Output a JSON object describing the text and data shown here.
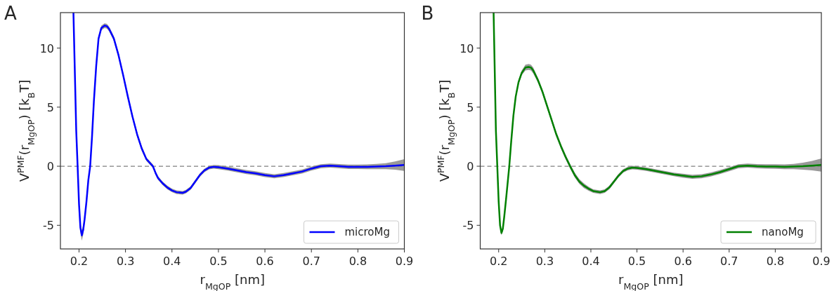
{
  "chart_data": [
    {
      "type": "line",
      "title": "A",
      "xlabel": "r$_{MgOP}$ [nm]",
      "ylabel": "V$^{PMF}$(r$_{MgOP}$) [k$_{B}$T]",
      "xlim": [
        0.16,
        0.9
      ],
      "ylim": [
        -7,
        13
      ],
      "xticks": [
        0.2,
        0.3,
        0.4,
        0.5,
        0.6,
        0.7,
        0.8,
        0.9
      ],
      "yticks": [
        -5,
        0,
        5,
        10
      ],
      "legend": "bottom right",
      "ref_lines": [
        {
          "axis": "y",
          "value": 0,
          "color": "#808080",
          "line_style": "dashed"
        }
      ],
      "series": [
        {
          "name": "microMg",
          "color": "#0000ff",
          "x": [
            0.188,
            0.191,
            0.194,
            0.197,
            0.2,
            0.203,
            0.206,
            0.209,
            0.212,
            0.216,
            0.22,
            0.224,
            0.228,
            0.232,
            0.237,
            0.242,
            0.248,
            0.255,
            0.26,
            0.265,
            0.275,
            0.285,
            0.295,
            0.305,
            0.315,
            0.325,
            0.335,
            0.345,
            0.359,
            0.365,
            0.37,
            0.38,
            0.39,
            0.4,
            0.41,
            0.423,
            0.43,
            0.44,
            0.45,
            0.46,
            0.47,
            0.48,
            0.49,
            0.5,
            0.52,
            0.54,
            0.56,
            0.58,
            0.6,
            0.62,
            0.64,
            0.66,
            0.68,
            0.7,
            0.72,
            0.74,
            0.76,
            0.78,
            0.8,
            0.82,
            0.84,
            0.86,
            0.88,
            0.9
          ],
          "values": [
            13,
            8,
            3,
            0,
            -3.2,
            -5.2,
            -5.85,
            -5.4,
            -4.5,
            -3,
            -1.2,
            0,
            2.5,
            5.5,
            8.5,
            10.8,
            11.7,
            11.9,
            11.85,
            11.6,
            10.8,
            9.4,
            7.7,
            5.9,
            4.2,
            2.7,
            1.5,
            0.6,
            0,
            -0.6,
            -1,
            -1.45,
            -1.8,
            -2.05,
            -2.2,
            -2.25,
            -2.15,
            -1.85,
            -1.3,
            -0.75,
            -0.35,
            -0.12,
            -0.05,
            -0.08,
            -0.2,
            -0.35,
            -0.5,
            -0.6,
            -0.75,
            -0.85,
            -0.75,
            -0.6,
            -0.45,
            -0.2,
            0,
            0.05,
            0,
            -0.05,
            -0.05,
            -0.05,
            -0.03,
            0,
            0.05,
            0.1
          ],
          "lower": [
            13,
            8,
            3,
            -0.1,
            -3.4,
            -5.6,
            -6.3,
            -5.8,
            -4.8,
            -3.2,
            -1.4,
            -0.2,
            2.3,
            5.3,
            8.3,
            10.6,
            11.5,
            11.7,
            11.65,
            11.4,
            10.6,
            9.2,
            7.5,
            5.7,
            4,
            2.5,
            1.3,
            0.45,
            -0.15,
            -0.75,
            -1.15,
            -1.6,
            -1.95,
            -2.2,
            -2.35,
            -2.4,
            -2.3,
            -2,
            -1.45,
            -0.9,
            -0.5,
            -0.27,
            -0.2,
            -0.25,
            -0.37,
            -0.52,
            -0.67,
            -0.77,
            -0.92,
            -1.02,
            -0.92,
            -0.77,
            -0.62,
            -0.37,
            -0.17,
            -0.12,
            -0.18,
            -0.23,
            -0.23,
            -0.25,
            -0.25,
            -0.25,
            -0.3,
            -0.4
          ],
          "upper": [
            13,
            8,
            3,
            0.1,
            -3,
            -4.8,
            -5.4,
            -5,
            -4.2,
            -2.8,
            -1,
            0.2,
            2.7,
            5.7,
            8.7,
            11,
            11.9,
            12.1,
            12.05,
            11.8,
            11,
            9.6,
            7.9,
            6.1,
            4.4,
            2.9,
            1.7,
            0.75,
            0.15,
            -0.45,
            -0.85,
            -1.3,
            -1.65,
            -1.9,
            -2.05,
            -2.1,
            -2,
            -1.7,
            -1.15,
            -0.6,
            -0.2,
            0.03,
            0.1,
            0.09,
            -0.03,
            -0.18,
            -0.33,
            -0.43,
            -0.58,
            -0.68,
            -0.58,
            -0.43,
            -0.28,
            -0.03,
            0.17,
            0.22,
            0.18,
            0.13,
            0.13,
            0.15,
            0.19,
            0.25,
            0.4,
            0.6
          ]
        }
      ]
    },
    {
      "type": "line",
      "title": "B",
      "xlabel": "r$_{MgOP}$ [nm]",
      "ylabel": "V$^{PMF}$(r$_{MgOP}$) [k$_{B}$T]",
      "xlim": [
        0.16,
        0.9
      ],
      "ylim": [
        -7,
        13
      ],
      "xticks": [
        0.2,
        0.3,
        0.4,
        0.5,
        0.6,
        0.7,
        0.8,
        0.9
      ],
      "yticks": [
        -5,
        0,
        5,
        10
      ],
      "legend": "bottom right",
      "ref_lines": [
        {
          "axis": "y",
          "value": 0,
          "color": "#808080",
          "line_style": "dashed"
        }
      ],
      "series": [
        {
          "name": "nanoMg",
          "color": "#008000",
          "x": [
            0.189,
            0.191,
            0.194,
            0.197,
            0.2,
            0.203,
            0.206,
            0.209,
            0.212,
            0.216,
            0.22,
            0.223,
            0.227,
            0.232,
            0.237,
            0.243,
            0.25,
            0.258,
            0.265,
            0.27,
            0.275,
            0.285,
            0.295,
            0.305,
            0.315,
            0.325,
            0.335,
            0.345,
            0.355,
            0.365,
            0.375,
            0.385,
            0.395,
            0.405,
            0.42,
            0.43,
            0.44,
            0.45,
            0.46,
            0.47,
            0.48,
            0.49,
            0.5,
            0.52,
            0.54,
            0.56,
            0.58,
            0.6,
            0.62,
            0.64,
            0.66,
            0.68,
            0.7,
            0.72,
            0.74,
            0.76,
            0.78,
            0.8,
            0.82,
            0.84,
            0.86,
            0.88,
            0.9
          ],
          "values": [
            13,
            9,
            3,
            0,
            -3,
            -5,
            -5.65,
            -5.3,
            -4.3,
            -2.8,
            -1.2,
            0,
            2,
            4.3,
            5.9,
            7.1,
            7.9,
            8.35,
            8.4,
            8.35,
            8.1,
            7.3,
            6.3,
            5.1,
            3.9,
            2.7,
            1.7,
            0.8,
            0,
            -0.75,
            -1.3,
            -1.65,
            -1.9,
            -2.1,
            -2.2,
            -2.1,
            -1.8,
            -1.3,
            -0.8,
            -0.4,
            -0.2,
            -0.12,
            -0.15,
            -0.25,
            -0.4,
            -0.55,
            -0.7,
            -0.8,
            -0.9,
            -0.85,
            -0.7,
            -0.5,
            -0.25,
            0,
            0.05,
            0,
            -0.02,
            -0.03,
            -0.05,
            -0.03,
            0,
            0.05,
            0.1
          ],
          "lower": [
            13,
            9,
            3,
            -0.1,
            -3.2,
            -5.2,
            -5.85,
            -5.5,
            -4.5,
            -3,
            -1.4,
            -0.2,
            1.8,
            4.1,
            5.7,
            6.9,
            7.7,
            8.1,
            8.15,
            8.1,
            7.85,
            7.1,
            6.1,
            4.9,
            3.7,
            2.5,
            1.5,
            0.6,
            -0.2,
            -0.95,
            -1.5,
            -1.85,
            -2.07,
            -2.25,
            -2.35,
            -2.25,
            -1.95,
            -1.45,
            -0.95,
            -0.55,
            -0.35,
            -0.27,
            -0.3,
            -0.4,
            -0.55,
            -0.7,
            -0.85,
            -0.97,
            -1.07,
            -1.02,
            -0.87,
            -0.67,
            -0.42,
            -0.17,
            -0.12,
            -0.18,
            -0.2,
            -0.22,
            -0.25,
            -0.25,
            -0.3,
            -0.35,
            -0.45
          ],
          "upper": [
            13,
            9,
            3,
            0.1,
            -2.8,
            -4.8,
            -5.45,
            -5.1,
            -4.1,
            -2.6,
            -1,
            0.2,
            2.2,
            4.5,
            6.1,
            7.3,
            8.1,
            8.6,
            8.65,
            8.6,
            8.35,
            7.5,
            6.5,
            5.3,
            4.1,
            2.9,
            1.9,
            1,
            0.2,
            -0.55,
            -1.1,
            -1.45,
            -1.73,
            -1.95,
            -2.05,
            -1.95,
            -1.65,
            -1.15,
            -0.65,
            -0.25,
            -0.05,
            0.03,
            0,
            -0.1,
            -0.25,
            -0.4,
            -0.55,
            -0.63,
            -0.73,
            -0.68,
            -0.53,
            -0.33,
            -0.08,
            0.17,
            0.22,
            0.18,
            0.16,
            0.16,
            0.15,
            0.19,
            0.3,
            0.45,
            0.65
          ]
        }
      ]
    }
  ]
}
